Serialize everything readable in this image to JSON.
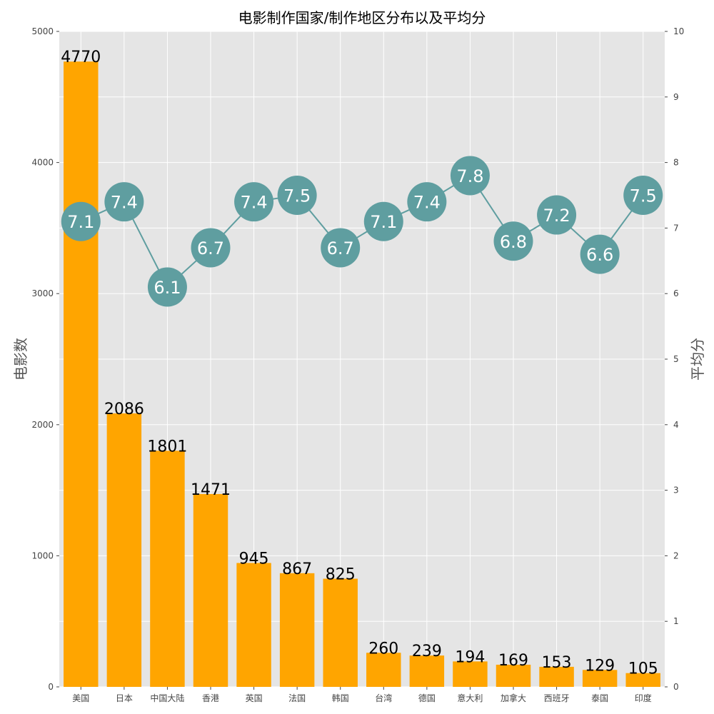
{
  "chart_data": {
    "type": "bar",
    "title": "电影制作国家/制作地区分布以及平均分",
    "ylabel": "电影数",
    "y2label": "平均分",
    "ylim": [
      0,
      5000
    ],
    "y2lim": [
      0,
      10
    ],
    "yticks": [
      "0",
      "1000",
      "2000",
      "3000",
      "4000",
      "5000"
    ],
    "y2ticks": [
      "0",
      "1",
      "2",
      "3",
      "4",
      "5",
      "6",
      "7",
      "8",
      "9",
      "10"
    ],
    "grid": true,
    "categories": [
      "美国",
      "日本",
      "中国大陆",
      "香港",
      "英国",
      "法国",
      "韩国",
      "台湾",
      "德国",
      "意大利",
      "加拿大",
      "西班牙",
      "泰国",
      "印度"
    ],
    "series": [
      {
        "type": "bar",
        "axis": "left",
        "color": "#ffa500",
        "values": [
          4770,
          2086,
          1801,
          1471,
          945,
          867,
          825,
          260,
          239,
          194,
          169,
          153,
          129,
          105
        ],
        "labels": [
          "4770",
          "2086",
          "1801",
          "1471",
          "945",
          "867",
          "825",
          "260",
          "239",
          "194",
          "169",
          "153",
          "129",
          "105"
        ]
      },
      {
        "type": "line",
        "axis": "right",
        "color": "#5f9ea0",
        "values": [
          7.1,
          7.4,
          6.1,
          6.7,
          7.4,
          7.5,
          6.7,
          7.1,
          7.4,
          7.8,
          6.8,
          7.2,
          6.6,
          7.5
        ],
        "labels": [
          "7.1",
          "7.4",
          "6.1",
          "6.7",
          "7.4",
          "7.5",
          "6.7",
          "7.1",
          "7.4",
          "7.8",
          "6.8",
          "7.2",
          "6.6",
          "7.5"
        ]
      }
    ],
    "colors": {
      "plot_background": "#e5e5e5",
      "grid": "#ffffff",
      "bar": "#ffa500",
      "marker": "#5f9ea0"
    }
  }
}
